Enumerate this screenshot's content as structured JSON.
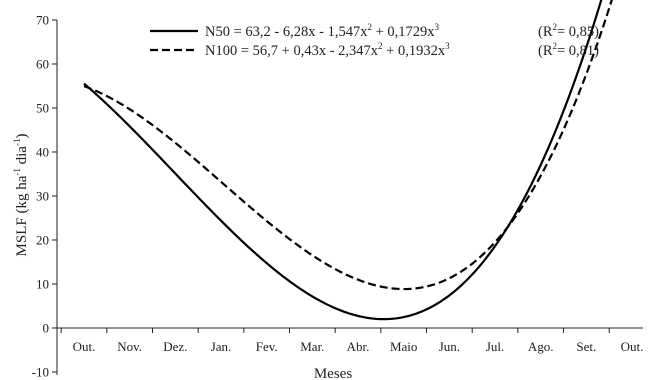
{
  "chart_data": {
    "type": "line",
    "xlabel": "Meses",
    "ylabel": "MSLF (kg ha",
    "ylabel_sup1": "-1",
    "ylabel_mid": " dia",
    "ylabel_sup2": "-1",
    "ylabel_end": ")",
    "ylim": [
      -10,
      70
    ],
    "yticks": [
      -10,
      0,
      10,
      20,
      30,
      40,
      50,
      60,
      70
    ],
    "categories": [
      "Out.",
      "Nov.",
      "Dez.",
      "Jan.",
      "Fev.",
      "Mar.",
      "Abr.",
      "Maio",
      "Jun.",
      "Jul.",
      "Ago.",
      "Set.",
      "Out."
    ],
    "grid": false,
    "legend_position": "top-right",
    "series": [
      {
        "name": "N50",
        "dash": "solid",
        "color": "#000000",
        "coefficients": [
          63.2,
          -6.28,
          -1.547,
          0.1729
        ],
        "r2": "0,85",
        "legend": {
          "name": "N50",
          "eq_a": " = 63,2 - 6,28x - 1,547x",
          "eq_b": " + 0,1729x",
          "sup_a": "2",
          "sup_b": "3",
          "r2_pre": "(R",
          "r2_sup": "2",
          "r2_post": "= 0,85)"
        }
      },
      {
        "name": "N100",
        "dash": "dashed",
        "color": "#000000",
        "coefficients": [
          56.7,
          0.43,
          -2.347,
          0.1932
        ],
        "r2": "0,81",
        "legend": {
          "name": "N100",
          "eq_a": " = 56,7 + 0,43x - 2,347x",
          "eq_b": " + 0,1932x",
          "sup_a": "2",
          "sup_b": "3",
          "r2_pre": "(R",
          "r2_sup": "2",
          "r2_post": "= 0,81)"
        }
      }
    ]
  }
}
